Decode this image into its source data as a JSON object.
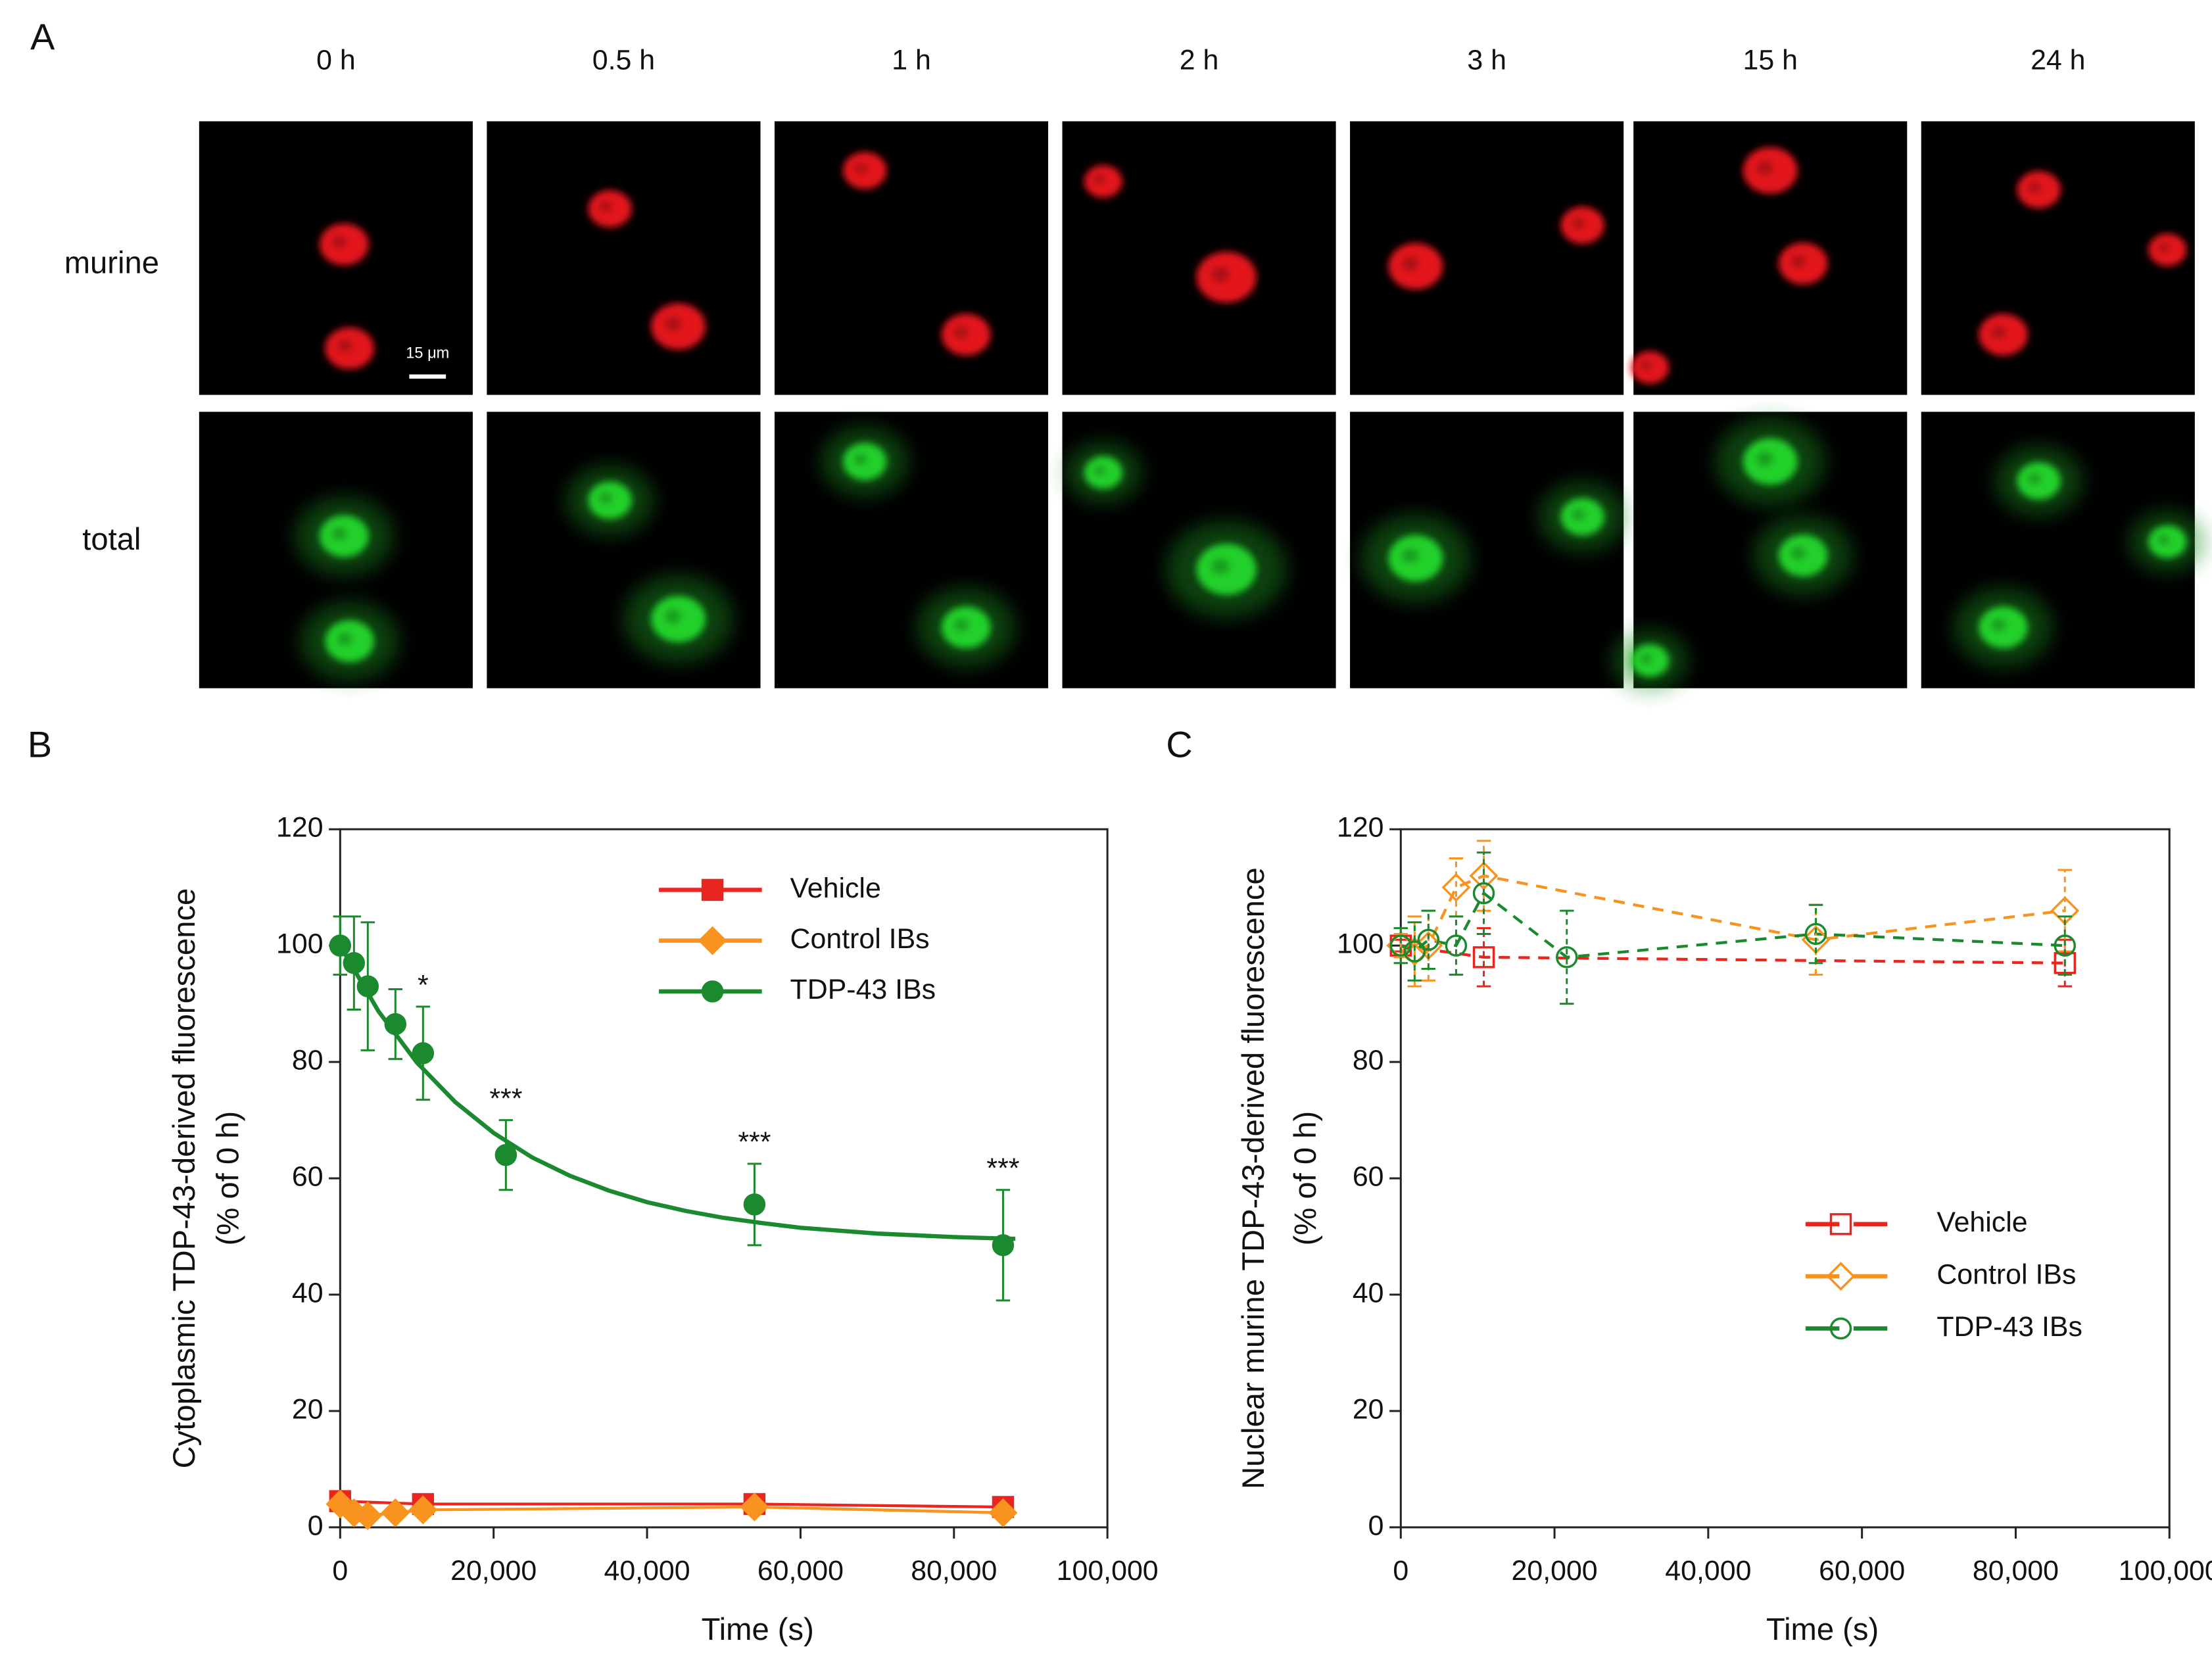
{
  "panel_a": {
    "label": "A",
    "columns": [
      "0 h",
      "0.5 h",
      "1 h",
      "2 h",
      "3 h",
      "15 h",
      "24 h"
    ],
    "rows": [
      "murine",
      "total"
    ],
    "scale_bar": "15 μm"
  },
  "chart_data": [
    {
      "type": "line",
      "panel": "B",
      "y_label": [
        "Cytoplasmic TDP-43-derived fluorescence",
        "(% of 0 h)"
      ],
      "x_label": "Time (s)",
      "xlim": [
        0,
        100000
      ],
      "ylim": [
        0,
        120
      ],
      "xticks": [
        0,
        {
          "value": 20000,
          "label": "20,000"
        },
        {
          "value": 40000,
          "label": "40,000"
        },
        {
          "value": 60000,
          "label": "60,000"
        },
        {
          "value": 80000,
          "label": "80,000"
        },
        {
          "value": 100000,
          "label": "100,000"
        }
      ],
      "yticks": [
        0,
        20,
        40,
        60,
        80,
        100,
        120
      ],
      "marker_fill": true,
      "line_style": "solid",
      "legend": "upper-right",
      "series": [
        {
          "name": "Vehicle",
          "color": "#e8251f",
          "marker": "square",
          "x": [
            0,
            10800,
            54000,
            86400
          ],
          "values": [
            4.5,
            4,
            4,
            3.5
          ],
          "errors": [
            1,
            1.5,
            1,
            1.5
          ]
        },
        {
          "name": "Control IBs",
          "color": "#f7931e",
          "marker": "diamond",
          "x": [
            0,
            1800,
            3600,
            7200,
            10800,
            54000,
            86400
          ],
          "values": [
            4,
            2.5,
            2,
            2.5,
            3,
            3.5,
            2.5
          ],
          "errors": [
            1,
            1,
            1,
            1,
            1,
            1,
            1
          ]
        },
        {
          "name": "TDP-43 IBs",
          "color": "#1b8a2e",
          "marker": "circle",
          "x": [
            0,
            1800,
            3600,
            7200,
            10800,
            21600,
            54000,
            86400
          ],
          "values": [
            100,
            97,
            93,
            86.5,
            81.5,
            64,
            55.5,
            48.5
          ],
          "errors": [
            5,
            8,
            11,
            6,
            8,
            6,
            7,
            9.5
          ],
          "significance": [
            null,
            null,
            null,
            null,
            "*",
            "***",
            "***",
            "***"
          ],
          "fit": {
            "x": [
              0,
              5000,
              10000,
              15000,
              20000,
              25000,
              30000,
              35000,
              40000,
              45000,
              50000,
              55000,
              60000,
              65000,
              70000,
              75000,
              80000,
              85000,
              88000
            ],
            "values": [
              100,
              88.7,
              79.9,
              73.1,
              67.8,
              63.6,
              60.4,
              57.9,
              55.9,
              54.4,
              53.2,
              52.3,
              51.5,
              51.0,
              50.5,
              50.2,
              49.9,
              49.7,
              49.6
            ]
          }
        }
      ]
    },
    {
      "type": "line",
      "panel": "C",
      "y_label": [
        "Nuclear murine TDP-43-derived fluorescence",
        "(% of 0 h)"
      ],
      "x_label": "Time (s)",
      "xlim": [
        0,
        100000
      ],
      "ylim": [
        0,
        120
      ],
      "xticks": [
        0,
        {
          "value": 20000,
          "label": "20,000"
        },
        {
          "value": 40000,
          "label": "40,000"
        },
        {
          "value": 60000,
          "label": "60,000"
        },
        {
          "value": 80000,
          "label": "80,000"
        },
        {
          "value": 100000,
          "label": "100,000"
        }
      ],
      "yticks": [
        0,
        20,
        40,
        60,
        80,
        100,
        120
      ],
      "marker_fill": false,
      "line_style": "dashed",
      "legend": "lower-right",
      "series": [
        {
          "name": "Vehicle",
          "color": "#e8251f",
          "marker": "square",
          "x": [
            0,
            10800,
            86400
          ],
          "values": [
            100,
            98,
            97
          ],
          "errors": [
            1,
            5,
            4
          ]
        },
        {
          "name": "Control IBs",
          "color": "#f7931e",
          "marker": "diamond",
          "x": [
            0,
            1800,
            3600,
            7200,
            10800,
            54000,
            86400
          ],
          "values": [
            100,
            99,
            100,
            110,
            112,
            101,
            106
          ],
          "errors": [
            2,
            6,
            6,
            5,
            6,
            6,
            7
          ]
        },
        {
          "name": "TDP-43 IBs",
          "color": "#1b8a2e",
          "marker": "circle",
          "x": [
            0,
            1800,
            3600,
            7200,
            10800,
            21600,
            54000,
            86400
          ],
          "values": [
            100,
            99,
            101,
            100,
            109,
            98,
            102,
            100
          ],
          "errors": [
            3,
            5,
            5,
            5,
            7,
            8,
            5,
            5
          ]
        }
      ]
    }
  ]
}
